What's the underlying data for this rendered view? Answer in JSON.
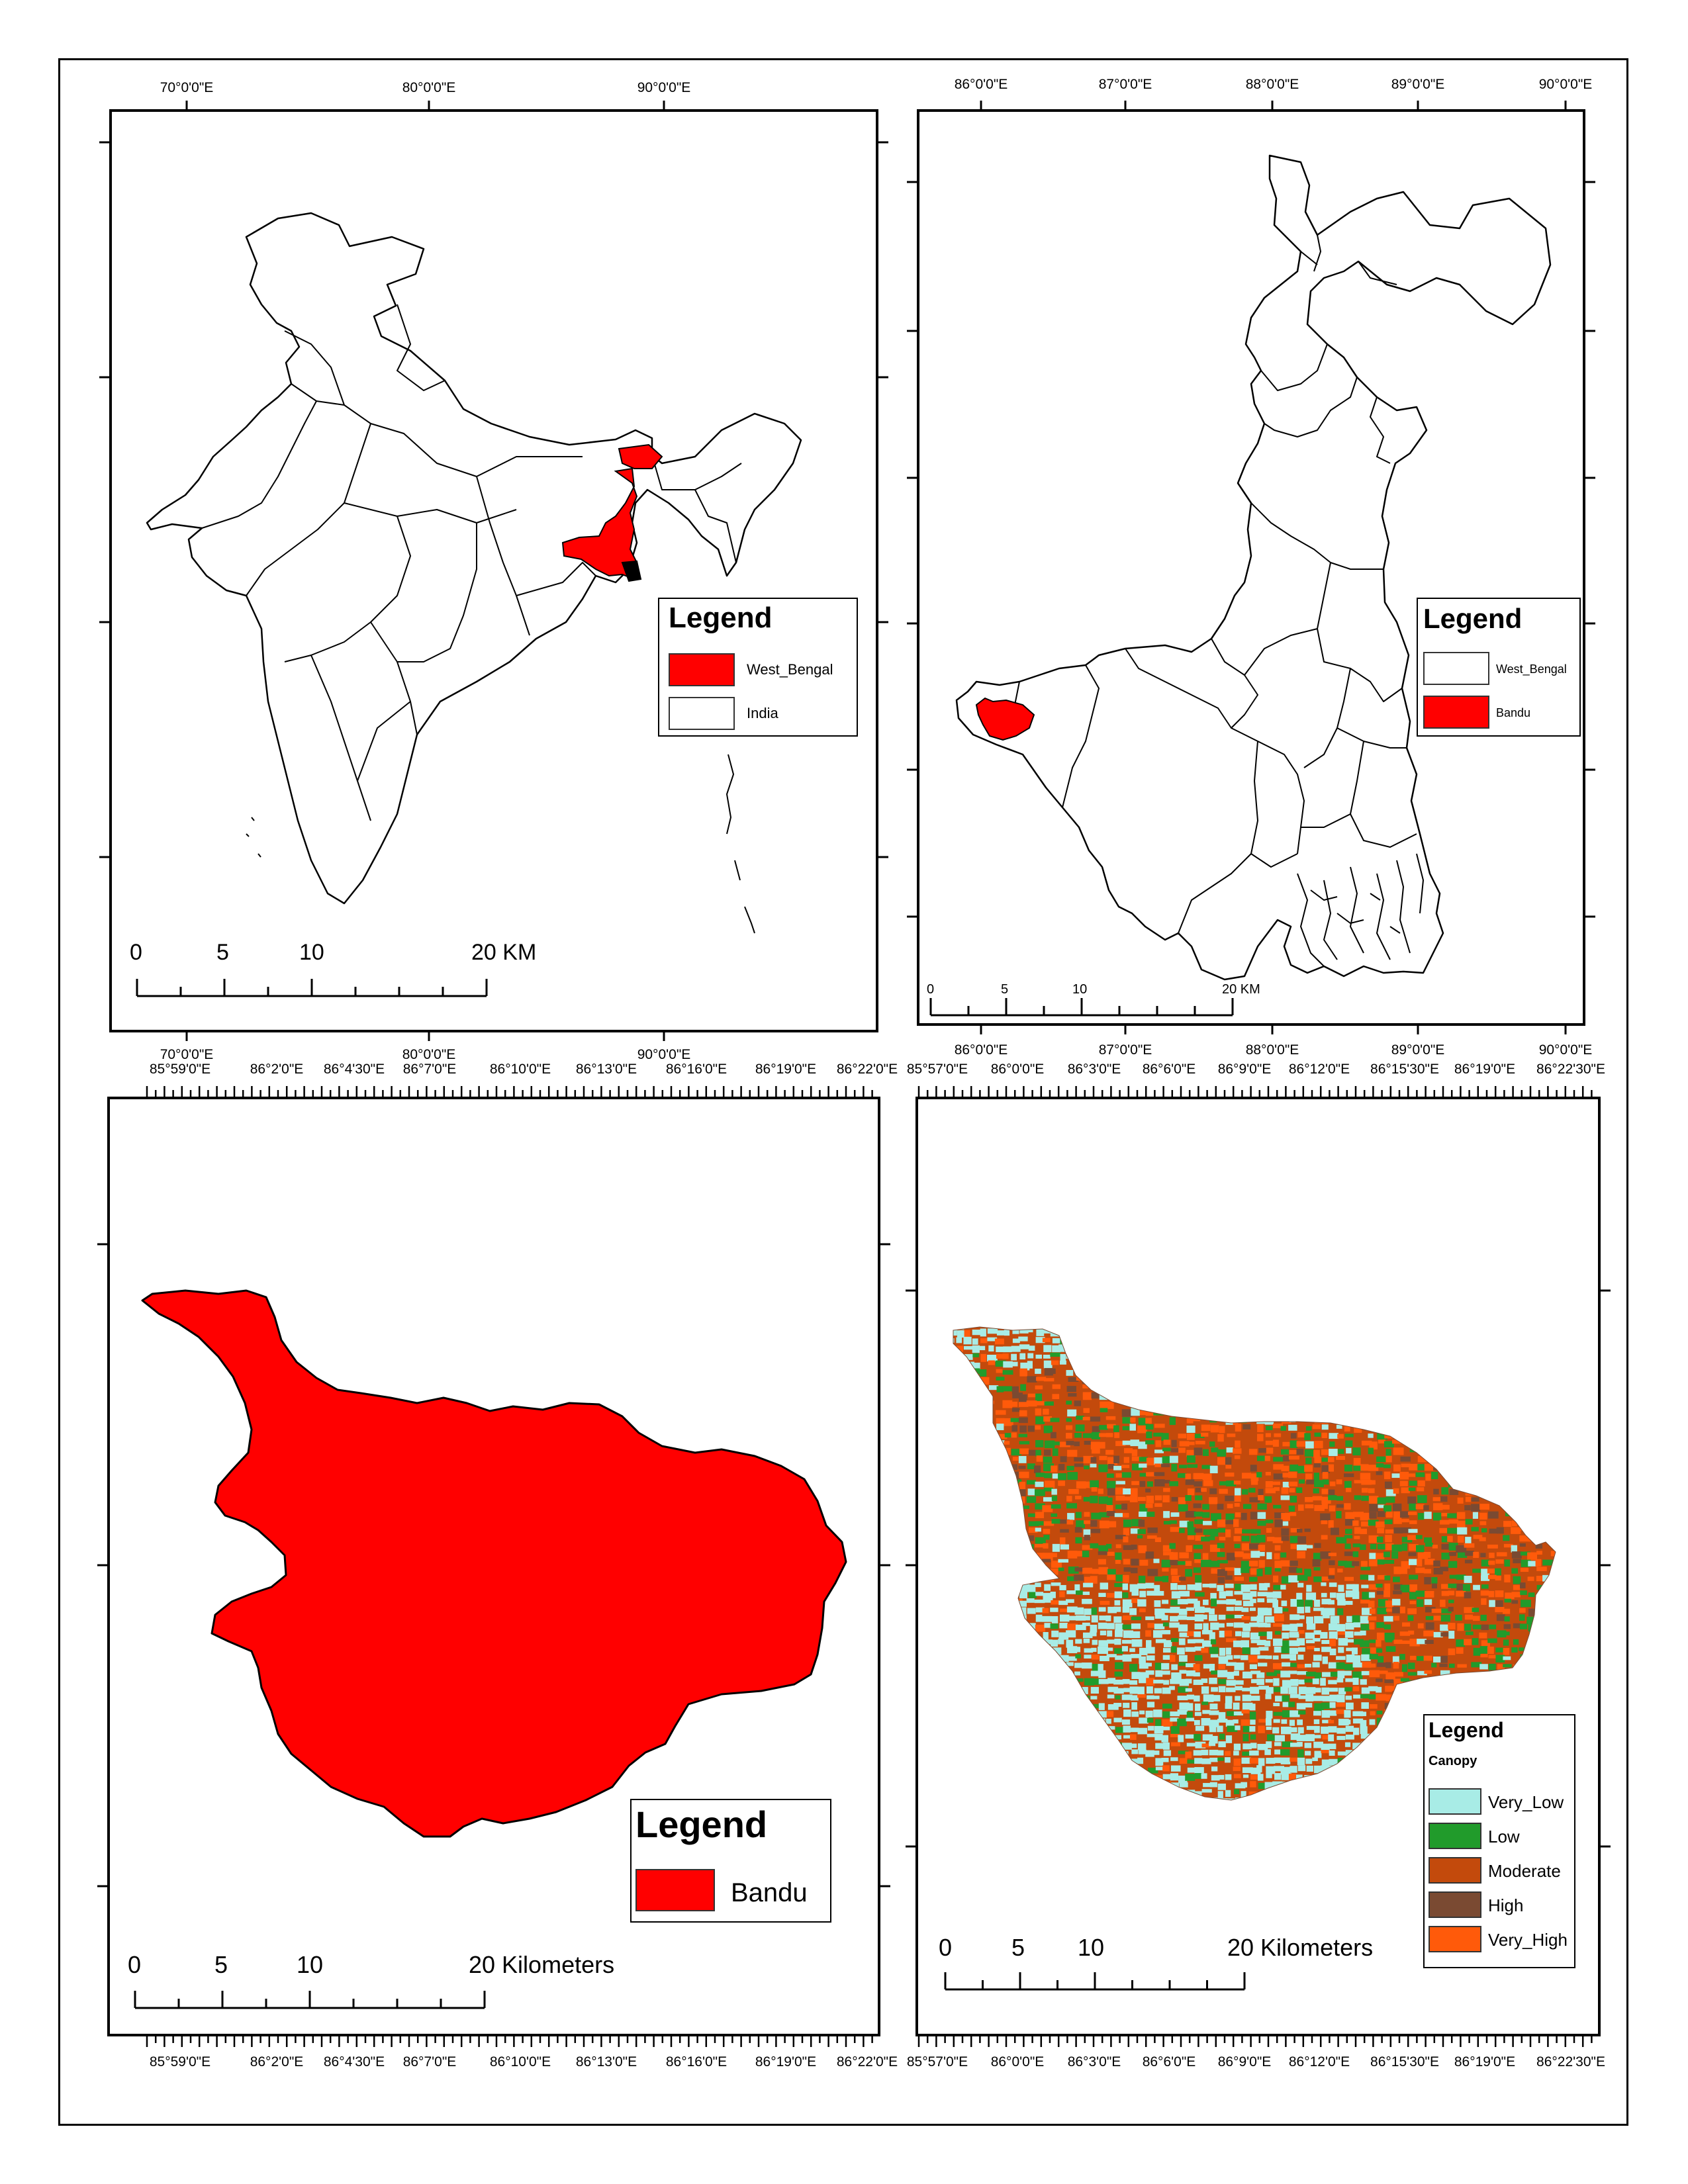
{
  "colors": {
    "west_bengal": "#ff0000",
    "bandu": "#ff0000",
    "very_low": "#a8ece6",
    "low": "#219b2b",
    "moderate": "#c34a0c",
    "high": "#7a4a32",
    "very_high": "#ff5a0a"
  },
  "panel_india": {
    "top_labels": [
      "70°0'0\"E",
      "80°0'0\"E",
      "90°0'0\"E"
    ],
    "bottom_labels": [
      "70°0'0\"E",
      "80°0'0\"E",
      "90°0'0\"E"
    ],
    "legend": {
      "title": "Legend",
      "items": [
        {
          "label": "West_Bengal",
          "swatch": "west_bengal"
        },
        {
          "label": "India",
          "swatch": "white"
        }
      ]
    },
    "scale": {
      "ticks": [
        "0",
        "5",
        "10"
      ],
      "end": "20 KM"
    }
  },
  "panel_wb": {
    "top_labels": [
      "86°0'0\"E",
      "87°0'0\"E",
      "88°0'0\"E",
      "89°0'0\"E",
      "90°0'0\"E"
    ],
    "bottom_labels": [
      "86°0'0\"E",
      "87°0'0\"E",
      "88°0'0\"E",
      "89°0'0\"E",
      "90°0'0\"E"
    ],
    "legend": {
      "title": "Legend",
      "items": [
        {
          "label": "West_Bengal",
          "swatch": "white"
        },
        {
          "label": "Bandu",
          "swatch": "bandu"
        }
      ]
    },
    "scale": {
      "ticks": [
        "0",
        "5",
        "10"
      ],
      "end": "20 KM"
    }
  },
  "panel_bandu": {
    "top_labels": [
      "85°59'0\"E",
      "86°2'0\"E",
      "86°4'30\"E",
      "86°7'0\"E",
      "86°10'0\"E",
      "86°13'0\"E",
      "86°16'0\"E",
      "86°19'0\"E",
      "86°22'0\"E"
    ],
    "bottom_labels": [
      "85°59'0\"E",
      "86°2'0\"E",
      "86°4'30\"E",
      "86°7'0\"E",
      "86°10'0\"E",
      "86°13'0\"E",
      "86°16'0\"E",
      "86°19'0\"E",
      "86°22'0\"E"
    ],
    "legend": {
      "title": "Legend",
      "items": [
        {
          "label": "Bandu",
          "swatch": "bandu"
        }
      ]
    },
    "scale": {
      "ticks": [
        "0",
        "5",
        "10"
      ],
      "end": "20 Kilometers"
    }
  },
  "panel_canopy": {
    "top_labels": [
      "85°57'0\"E",
      "86°0'0\"E",
      "86°3'0\"E",
      "86°6'0\"E",
      "86°9'0\"E",
      "86°12'0\"E",
      "86°15'30\"E",
      "86°19'0\"E",
      "86°22'30\"E"
    ],
    "bottom_labels": [
      "85°57'0\"E",
      "86°0'0\"E",
      "86°3'0\"E",
      "86°6'0\"E",
      "86°9'0\"E",
      "86°12'0\"E",
      "86°15'30\"E",
      "86°19'0\"E",
      "86°22'30\"E"
    ],
    "legend": {
      "title": "Legend",
      "subtitle": "Canopy",
      "items": [
        {
          "label": "Very_Low",
          "swatch": "very_low"
        },
        {
          "label": "Low",
          "swatch": "low"
        },
        {
          "label": "Moderate",
          "swatch": "moderate"
        },
        {
          "label": "High",
          "swatch": "high"
        },
        {
          "label": "Very_High",
          "swatch": "very_high"
        }
      ]
    },
    "scale": {
      "ticks": [
        "0",
        "5",
        "10"
      ],
      "end": "20 Kilometers"
    }
  }
}
